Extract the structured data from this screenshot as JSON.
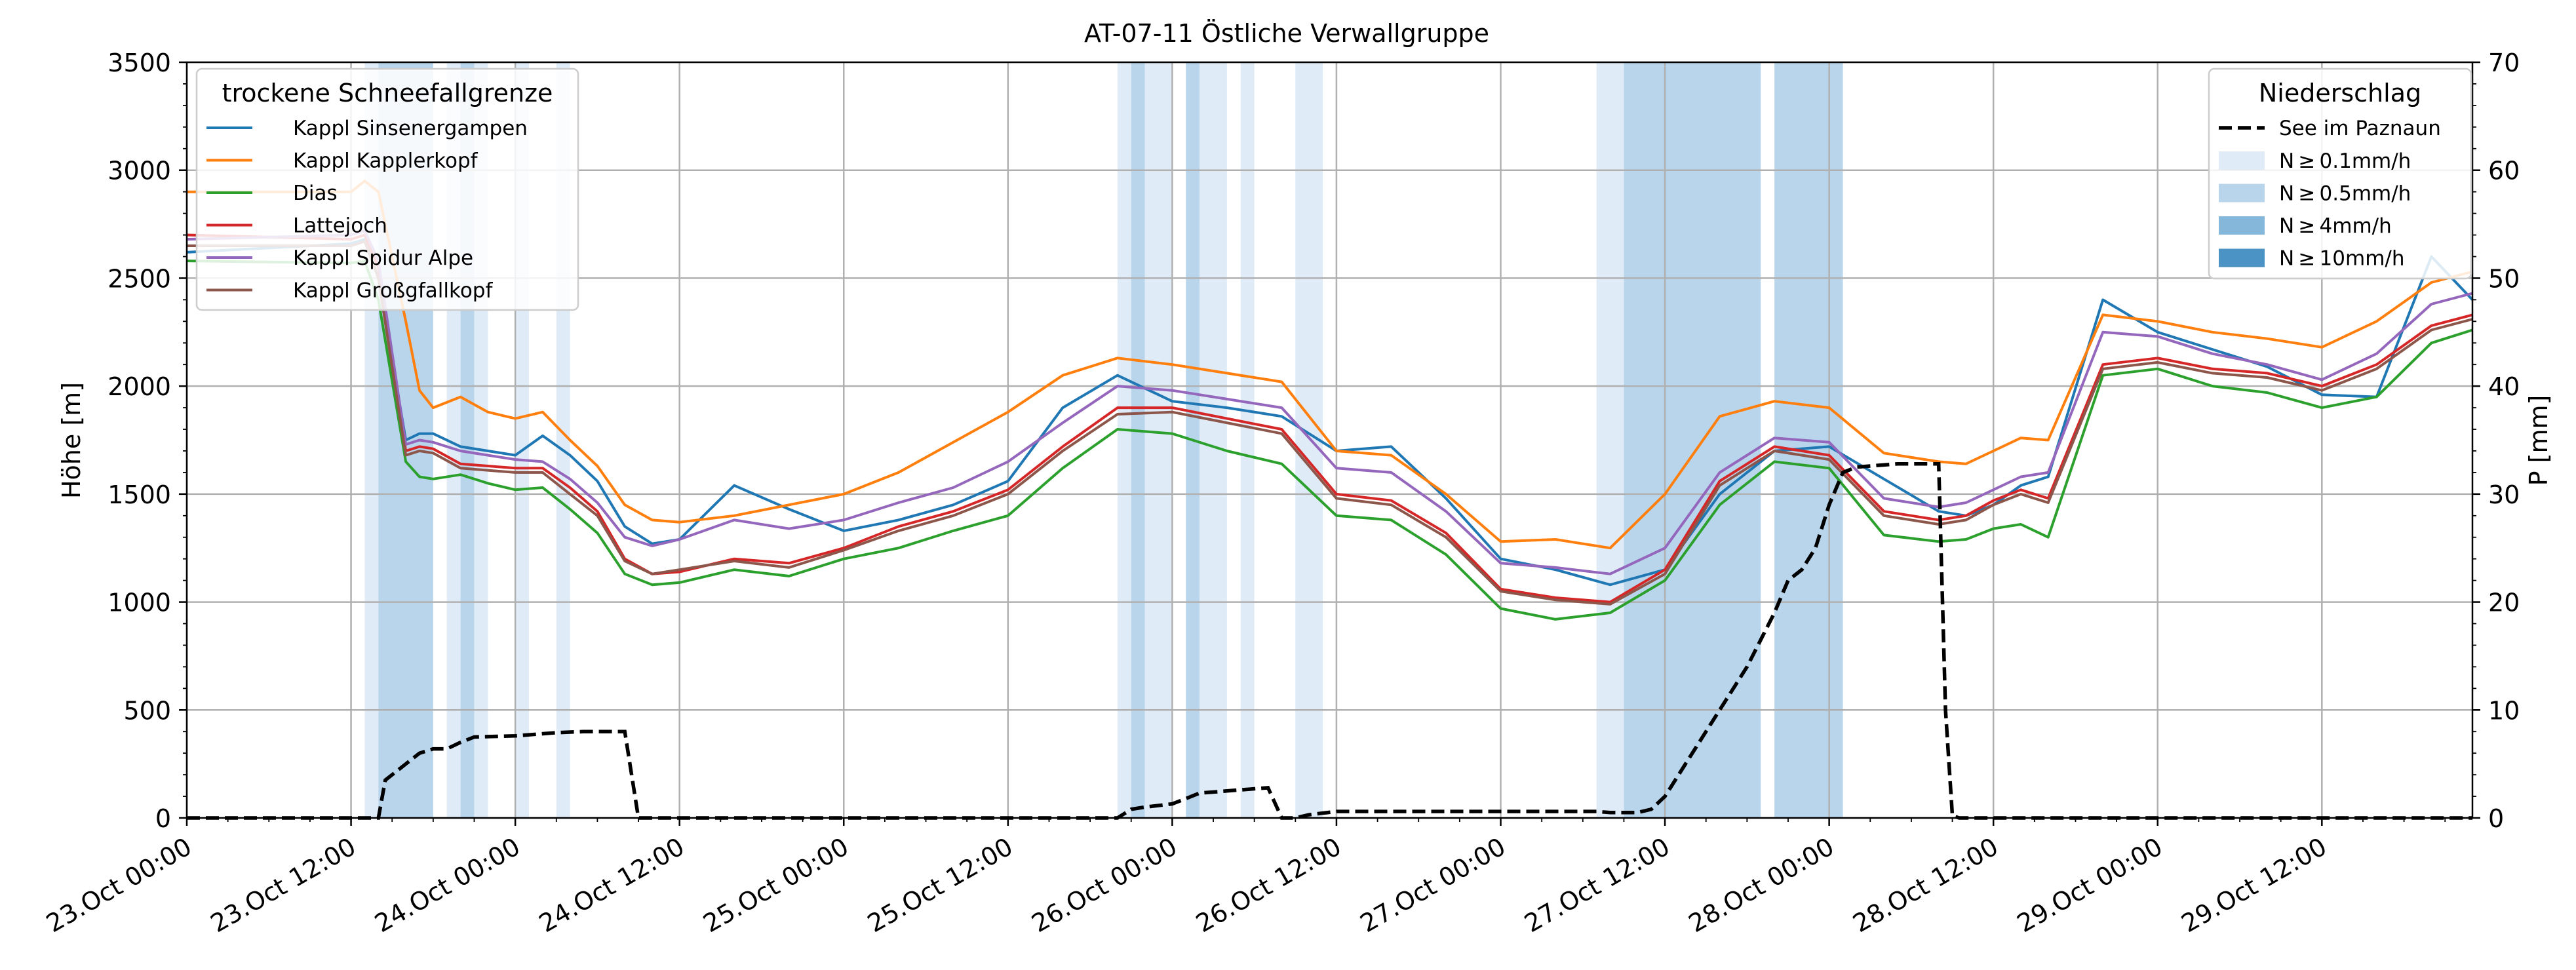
{
  "chart_data": {
    "type": "line",
    "title": "AT-07-11 Östliche Verwallgruppe",
    "ylabel_left": "Höhe [m]",
    "ylabel_right": "P [mm]",
    "xlim_hours": [
      0,
      167
    ],
    "ylim_left": [
      0,
      3500
    ],
    "ylim_right": [
      0,
      70
    ],
    "yticks_left": [
      0,
      500,
      1000,
      1500,
      2000,
      2500,
      3000,
      3500
    ],
    "yticks_right": [
      0,
      10,
      20,
      30,
      40,
      50,
      60,
      70
    ],
    "xticks": [
      {
        "h": 0,
        "label": "23.Oct 00:00"
      },
      {
        "h": 12,
        "label": "23.Oct 12:00"
      },
      {
        "h": 24,
        "label": "24.Oct 00:00"
      },
      {
        "h": 36,
        "label": "24.Oct 12:00"
      },
      {
        "h": 48,
        "label": "25.Oct 00:00"
      },
      {
        "h": 60,
        "label": "25.Oct 12:00"
      },
      {
        "h": 72,
        "label": "26.Oct 00:00"
      },
      {
        "h": 84,
        "label": "26.Oct 12:00"
      },
      {
        "h": 96,
        "label": "27.Oct 00:00"
      },
      {
        "h": 108,
        "label": "27.Oct 12:00"
      },
      {
        "h": 120,
        "label": "28.Oct 00:00"
      },
      {
        "h": 132,
        "label": "28.Oct 12:00"
      },
      {
        "h": 144,
        "label": "29.Oct 00:00"
      },
      {
        "h": 156,
        "label": "29.Oct 12:00"
      }
    ],
    "legend_left": {
      "title": "trockene Schneefallgrenze",
      "position": "upper-left"
    },
    "legend_right": {
      "title": "Niederschlag",
      "position": "upper-right",
      "line_label": "See im Paznaun",
      "band_labels": [
        "N ≥ 0.1mm/h",
        "N ≥ 0.5mm/h",
        "N ≥ 4mm/h",
        "N ≥ 10mm/h"
      ],
      "band_colors": [
        "#dfebf7",
        "#b9d5eb",
        "#84b7da",
        "#4a93c4"
      ]
    },
    "precip_bands": [
      {
        "start": 13,
        "end": 14,
        "level": 0
      },
      {
        "start": 14,
        "end": 18,
        "level": 1
      },
      {
        "start": 19,
        "end": 20,
        "level": 0
      },
      {
        "start": 20,
        "end": 21,
        "level": 1
      },
      {
        "start": 21,
        "end": 22,
        "level": 0
      },
      {
        "start": 24,
        "end": 25,
        "level": 0
      },
      {
        "start": 27,
        "end": 28,
        "level": 0
      },
      {
        "start": 68,
        "end": 69,
        "level": 0
      },
      {
        "start": 69,
        "end": 70,
        "level": 1
      },
      {
        "start": 70,
        "end": 72,
        "level": 0
      },
      {
        "start": 73,
        "end": 74,
        "level": 1
      },
      {
        "start": 74,
        "end": 76,
        "level": 0
      },
      {
        "start": 77,
        "end": 78,
        "level": 0
      },
      {
        "start": 81,
        "end": 83,
        "level": 0
      },
      {
        "start": 103,
        "end": 105,
        "level": 0
      },
      {
        "start": 105,
        "end": 115,
        "level": 1
      },
      {
        "start": 116,
        "end": 121,
        "level": 1
      }
    ],
    "precip_hours": [
      0,
      12,
      14,
      14.5,
      16,
      17,
      18,
      19,
      20,
      21,
      24,
      26,
      27,
      29,
      30,
      31,
      32,
      33,
      68,
      69,
      70,
      72,
      73,
      74,
      76,
      79,
      80,
      81,
      82,
      84,
      96,
      103,
      104,
      106,
      107,
      108,
      111,
      113,
      114,
      116,
      117,
      118,
      119,
      120,
      121,
      122,
      123,
      124,
      125,
      126,
      127,
      128,
      128.5,
      129,
      129.5,
      130,
      167
    ],
    "precip_values": [
      0,
      0,
      0,
      3.5,
      5,
      6,
      6.4,
      6.4,
      7,
      7.5,
      7.6,
      7.8,
      7.9,
      8,
      8,
      8,
      8,
      0,
      0,
      0.8,
      1,
      1.3,
      1.8,
      2.3,
      2.5,
      2.8,
      0,
      0,
      0.3,
      0.6,
      0.6,
      0.6,
      0.5,
      0.5,
      0.8,
      2,
      8,
      12,
      14,
      19,
      22,
      23,
      25,
      29,
      32,
      32.5,
      32.6,
      32.7,
      32.8,
      32.8,
      32.8,
      32.8,
      10,
      0.2,
      0,
      0,
      0
    ],
    "series_hours": [
      0,
      12,
      13,
      14,
      16,
      17,
      18,
      20,
      22,
      24,
      26,
      28,
      30,
      32,
      34,
      36,
      40,
      44,
      48,
      52,
      56,
      60,
      64,
      68,
      72,
      76,
      80,
      84,
      88,
      92,
      96,
      100,
      104,
      108,
      112,
      116,
      120,
      124,
      128,
      130,
      132,
      134,
      136,
      140,
      144,
      148,
      152,
      156,
      160,
      164,
      167
    ],
    "series": [
      {
        "name": "Kappl Sinsenergampen",
        "color": "#1f77b4",
        "values": [
          2620,
          2660,
          2680,
          2500,
          1750,
          1780,
          1780,
          1720,
          1700,
          1680,
          1770,
          1680,
          1560,
          1350,
          1270,
          1290,
          1540,
          1430,
          1330,
          1380,
          1450,
          1560,
          1900,
          2050,
          1930,
          1900,
          1860,
          1700,
          1720,
          1480,
          1200,
          1150,
          1080,
          1150,
          1500,
          1700,
          1720,
          1570,
          1420,
          1400,
          1450,
          1540,
          1580,
          2400,
          2250,
          2170,
          2090,
          1960,
          1950,
          2600,
          2400
        ]
      },
      {
        "name": "Kappl Kapplerkopf",
        "color": "#ff7f0e",
        "values": [
          2900,
          2900,
          2950,
          2900,
          2300,
          1980,
          1900,
          1950,
          1880,
          1850,
          1880,
          1750,
          1630,
          1450,
          1380,
          1370,
          1400,
          1450,
          1500,
          1600,
          1740,
          1880,
          2050,
          2130,
          2100,
          2060,
          2020,
          1700,
          1680,
          1500,
          1280,
          1290,
          1250,
          1500,
          1860,
          1930,
          1900,
          1690,
          1650,
          1640,
          1700,
          1760,
          1750,
          2330,
          2300,
          2250,
          2220,
          2180,
          2300,
          2480,
          2530
        ]
      },
      {
        "name": "Dias",
        "color": "#2ca02c",
        "values": [
          2580,
          2570,
          2580,
          2400,
          1650,
          1580,
          1570,
          1590,
          1550,
          1520,
          1530,
          1430,
          1320,
          1130,
          1080,
          1090,
          1150,
          1120,
          1200,
          1250,
          1330,
          1400,
          1620,
          1800,
          1780,
          1700,
          1640,
          1400,
          1380,
          1220,
          970,
          920,
          950,
          1100,
          1450,
          1650,
          1620,
          1310,
          1280,
          1290,
          1340,
          1360,
          1300,
          2050,
          2080,
          2000,
          1970,
          1900,
          1950,
          2200,
          2260
        ]
      },
      {
        "name": "Lattejoch",
        "color": "#d62728",
        "values": [
          2700,
          2680,
          2700,
          2550,
          1700,
          1720,
          1710,
          1640,
          1630,
          1620,
          1620,
          1530,
          1420,
          1200,
          1130,
          1140,
          1200,
          1180,
          1250,
          1350,
          1420,
          1520,
          1720,
          1900,
          1900,
          1850,
          1800,
          1500,
          1470,
          1320,
          1060,
          1020,
          1000,
          1150,
          1560,
          1720,
          1680,
          1420,
          1380,
          1400,
          1470,
          1520,
          1480,
          2100,
          2130,
          2080,
          2060,
          2000,
          2100,
          2280,
          2330
        ]
      },
      {
        "name": "Kappl Spidur Alpe",
        "color": "#9467bd",
        "values": [
          2680,
          2700,
          2720,
          2580,
          1730,
          1750,
          1740,
          1700,
          1680,
          1660,
          1650,
          1570,
          1460,
          1300,
          1260,
          1290,
          1380,
          1340,
          1380,
          1460,
          1530,
          1650,
          1830,
          2000,
          1980,
          1940,
          1900,
          1620,
          1600,
          1420,
          1180,
          1160,
          1130,
          1250,
          1600,
          1760,
          1740,
          1480,
          1440,
          1460,
          1520,
          1580,
          1600,
          2250,
          2230,
          2150,
          2100,
          2030,
          2150,
          2380,
          2430
        ]
      },
      {
        "name": "Kappl Großgfallkopf",
        "color": "#8c564b",
        "values": [
          2650,
          2650,
          2670,
          2500,
          1680,
          1700,
          1690,
          1620,
          1610,
          1600,
          1600,
          1500,
          1400,
          1190,
          1130,
          1150,
          1190,
          1160,
          1240,
          1330,
          1400,
          1500,
          1700,
          1870,
          1880,
          1830,
          1780,
          1480,
          1450,
          1300,
          1050,
          1010,
          990,
          1130,
          1540,
          1700,
          1660,
          1400,
          1360,
          1380,
          1450,
          1500,
          1460,
          2080,
          2110,
          2060,
          2040,
          1980,
          2080,
          2260,
          2310
        ]
      }
    ]
  }
}
